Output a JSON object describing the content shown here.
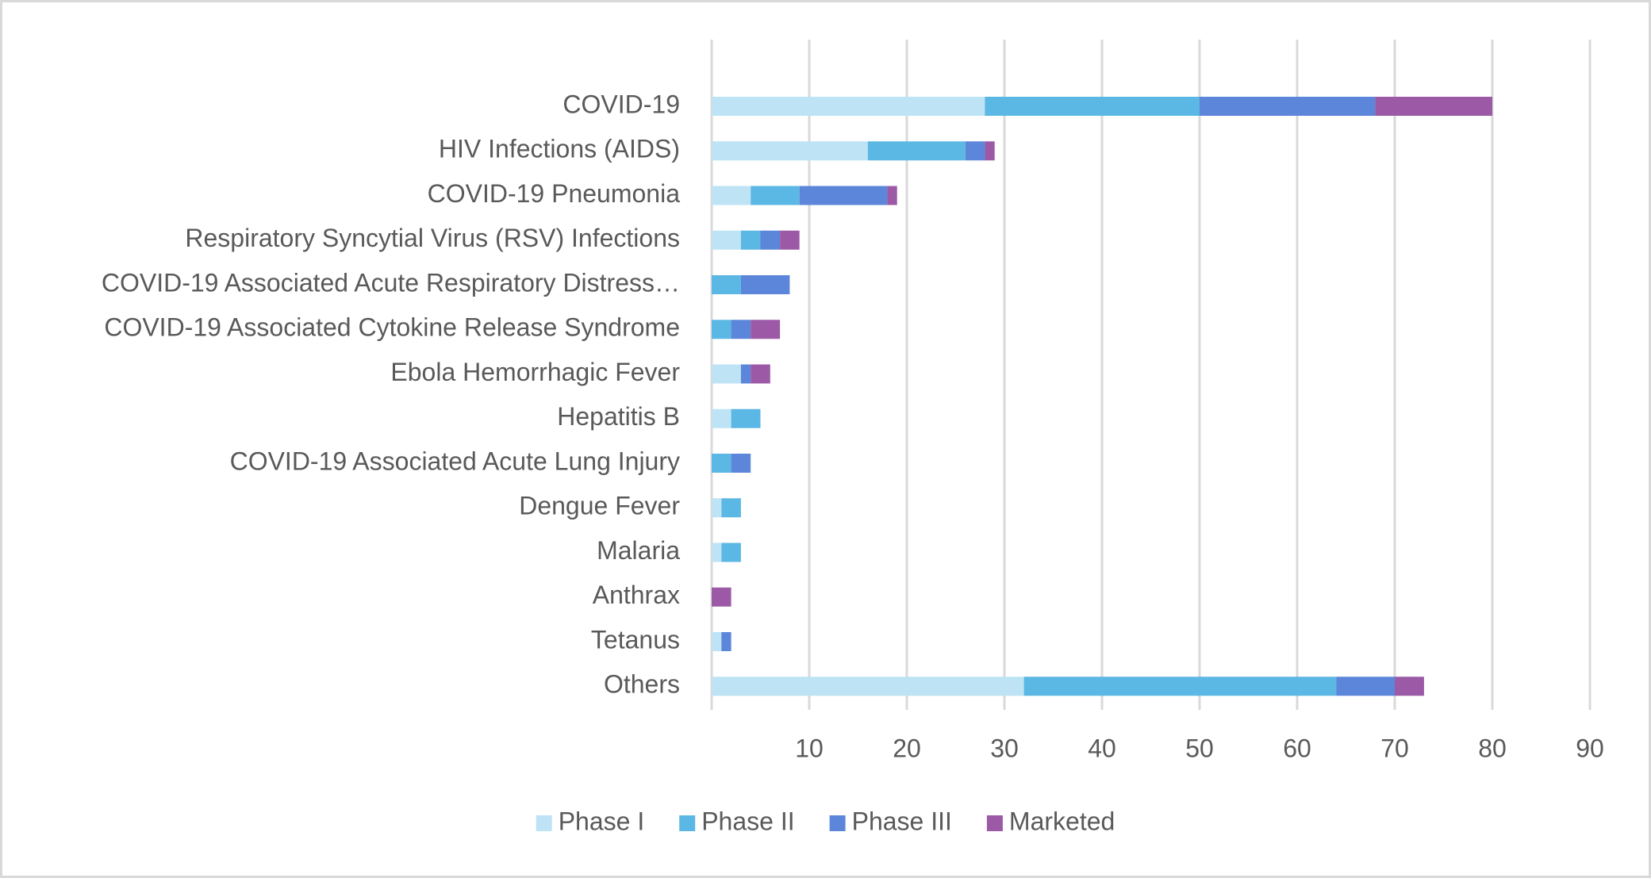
{
  "chart_data": {
    "type": "stacked-bar-horizontal",
    "categories": [
      "COVID-19",
      "HIV Infections (AIDS)",
      "COVID-19 Pneumonia",
      "Respiratory Syncytial Virus (RSV) Infections",
      "COVID-19 Associated Acute Respiratory Distress…",
      "COVID-19 Associated Cytokine Release Syndrome",
      "Ebola Hemorrhagic Fever",
      "Hepatitis B",
      "COVID-19 Associated Acute Lung Injury",
      "Dengue Fever",
      "Malaria",
      "Anthrax",
      "Tetanus",
      "Others"
    ],
    "series": [
      {
        "name": "Phase I",
        "color": "#bde3f4",
        "values": [
          28,
          16,
          4,
          3,
          0,
          0,
          3,
          2,
          0,
          1,
          1,
          0,
          1,
          32
        ]
      },
      {
        "name": "Phase II",
        "color": "#5bb7e3",
        "values": [
          22,
          10,
          5,
          2,
          3,
          2,
          0,
          3,
          2,
          2,
          2,
          0,
          0,
          32
        ]
      },
      {
        "name": "Phase III",
        "color": "#5b86d9",
        "values": [
          18,
          2,
          9,
          2,
          5,
          2,
          1,
          0,
          2,
          0,
          0,
          0,
          1,
          6
        ]
      },
      {
        "name": "Marketed",
        "color": "#9b59a6",
        "values": [
          12,
          1,
          1,
          2,
          0,
          3,
          2,
          0,
          0,
          0,
          0,
          2,
          0,
          3
        ]
      }
    ],
    "xlim": [
      0,
      90
    ],
    "xticks": [
      10,
      20,
      30,
      40,
      50,
      60,
      70,
      80,
      90
    ],
    "grid": true,
    "legend": "bottom"
  }
}
